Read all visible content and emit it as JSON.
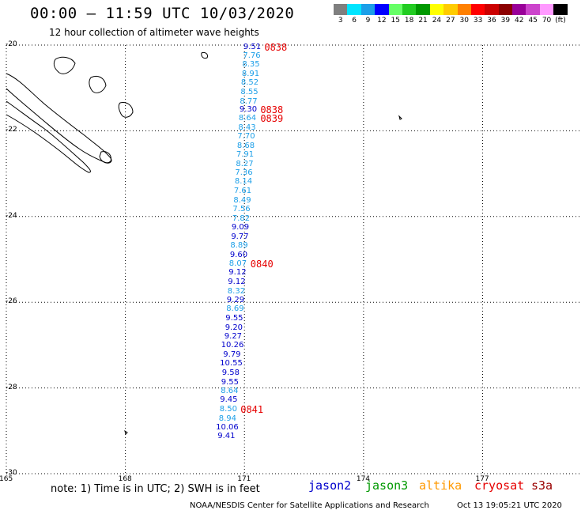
{
  "title": "00:00 – 11:59 UTC 10/03/2020",
  "subtitle": "12 hour collection of altimeter wave heights",
  "color_scale": {
    "unit": "(ft)",
    "bins": [
      {
        "label": "3",
        "color": "#7f7f7f"
      },
      {
        "label": "6",
        "color": "#00e5ff"
      },
      {
        "label": "9",
        "color": "#1c9fe8"
      },
      {
        "label": "12",
        "color": "#0000ff"
      },
      {
        "label": "15",
        "color": "#66ff66"
      },
      {
        "label": "18",
        "color": "#22cc22"
      },
      {
        "label": "21",
        "color": "#009900"
      },
      {
        "label": "24",
        "color": "#ffff00"
      },
      {
        "label": "27",
        "color": "#ffcc00"
      },
      {
        "label": "30",
        "color": "#ff8000"
      },
      {
        "label": "33",
        "color": "#ff0000"
      },
      {
        "label": "36",
        "color": "#cc0000"
      },
      {
        "label": "39",
        "color": "#8b0000"
      },
      {
        "label": "42",
        "color": "#990099"
      },
      {
        "label": "45",
        "color": "#cc44cc"
      },
      {
        "label": "70",
        "color": "#ff99ff"
      },
      {
        "label": "(ft)",
        "color": "#000000"
      }
    ]
  },
  "map": {
    "lat_labels": [
      "-20",
      "-22",
      "-24",
      "-26",
      "-28",
      "-30"
    ],
    "lon_labels": [
      "165",
      "168",
      "171",
      "174",
      "177"
    ],
    "lat_range": [
      -30,
      -20
    ],
    "lon_range": [
      165,
      179.5
    ],
    "track_color_light": "#1c9fe8",
    "track_color_dark": "#0000cc"
  },
  "observations": [
    {
      "lat": -20.06,
      "lon": 171.22,
      "swh": "9.51",
      "level": "dark"
    },
    {
      "lat": -20.25,
      "lon": 171.21,
      "swh": "7.76",
      "level": "light"
    },
    {
      "lat": -20.47,
      "lon": 171.19,
      "swh": "8.35",
      "level": "light"
    },
    {
      "lat": -20.68,
      "lon": 171.18,
      "swh": "8.91",
      "level": "light"
    },
    {
      "lat": -20.89,
      "lon": 171.16,
      "swh": "8.52",
      "level": "light"
    },
    {
      "lat": -21.1,
      "lon": 171.15,
      "swh": "8.55",
      "level": "light"
    },
    {
      "lat": -21.32,
      "lon": 171.13,
      "swh": "8.77",
      "level": "light"
    },
    {
      "lat": -21.51,
      "lon": 171.12,
      "swh": "9.30",
      "level": "dark"
    },
    {
      "lat": -21.72,
      "lon": 171.1,
      "swh": "8.64",
      "level": "light"
    },
    {
      "lat": -21.93,
      "lon": 171.09,
      "swh": "8.43",
      "level": "light"
    },
    {
      "lat": -22.14,
      "lon": 171.07,
      "swh": "7.70",
      "level": "light"
    },
    {
      "lat": -22.36,
      "lon": 171.06,
      "swh": "8.68",
      "level": "light"
    },
    {
      "lat": -22.57,
      "lon": 171.04,
      "swh": "7.91",
      "level": "light"
    },
    {
      "lat": -22.78,
      "lon": 171.03,
      "swh": "8.27",
      "level": "light"
    },
    {
      "lat": -22.99,
      "lon": 171.01,
      "swh": "7.36",
      "level": "light"
    },
    {
      "lat": -23.2,
      "lon": 171.0,
      "swh": "8.14",
      "level": "light"
    },
    {
      "lat": -23.42,
      "lon": 170.98,
      "swh": "7.61",
      "level": "light"
    },
    {
      "lat": -23.63,
      "lon": 170.97,
      "swh": "8.49",
      "level": "light"
    },
    {
      "lat": -23.84,
      "lon": 170.95,
      "swh": "7.56",
      "level": "light"
    },
    {
      "lat": -24.05,
      "lon": 170.94,
      "swh": "7.82",
      "level": "light"
    },
    {
      "lat": -24.26,
      "lon": 170.92,
      "swh": "9.09",
      "level": "dark"
    },
    {
      "lat": -24.48,
      "lon": 170.91,
      "swh": "9.77",
      "level": "dark"
    },
    {
      "lat": -24.69,
      "lon": 170.89,
      "swh": "8.89",
      "level": "light"
    },
    {
      "lat": -24.9,
      "lon": 170.88,
      "swh": "9.60",
      "level": "dark"
    },
    {
      "lat": -25.11,
      "lon": 170.86,
      "swh": "8.07",
      "level": "light"
    },
    {
      "lat": -25.32,
      "lon": 170.85,
      "swh": "9.12",
      "level": "dark"
    },
    {
      "lat": -25.54,
      "lon": 170.83,
      "swh": "9.12",
      "level": "dark"
    },
    {
      "lat": -25.75,
      "lon": 170.82,
      "swh": "8.32",
      "level": "light"
    },
    {
      "lat": -25.96,
      "lon": 170.8,
      "swh": "9.29",
      "level": "dark"
    },
    {
      "lat": -26.17,
      "lon": 170.79,
      "swh": "8.69",
      "level": "light"
    },
    {
      "lat": -26.38,
      "lon": 170.77,
      "swh": "9.55",
      "level": "dark"
    },
    {
      "lat": -26.6,
      "lon": 170.76,
      "swh": "9.20",
      "level": "dark"
    },
    {
      "lat": -26.81,
      "lon": 170.74,
      "swh": "9.27",
      "level": "dark"
    },
    {
      "lat": -27.02,
      "lon": 170.72,
      "swh": "10.26",
      "level": "dark"
    },
    {
      "lat": -27.23,
      "lon": 170.71,
      "swh": "9.79",
      "level": "dark"
    },
    {
      "lat": -27.44,
      "lon": 170.69,
      "swh": "10.55",
      "level": "dark"
    },
    {
      "lat": -27.66,
      "lon": 170.68,
      "swh": "9.58",
      "level": "dark"
    },
    {
      "lat": -27.87,
      "lon": 170.66,
      "swh": "9.55",
      "level": "dark"
    },
    {
      "lat": -28.08,
      "lon": 170.65,
      "swh": "8.64",
      "level": "light"
    },
    {
      "lat": -28.29,
      "lon": 170.63,
      "swh": "9.45",
      "level": "dark"
    },
    {
      "lat": -28.5,
      "lon": 170.62,
      "swh": "8.50",
      "level": "light"
    },
    {
      "lat": -28.72,
      "lon": 170.6,
      "swh": "8.94",
      "level": "light"
    },
    {
      "lat": -28.93,
      "lon": 170.59,
      "swh": "10.06",
      "level": "dark"
    },
    {
      "lat": -29.14,
      "lon": 170.57,
      "swh": "9.41",
      "level": "dark"
    }
  ],
  "time_labels": [
    {
      "text": "0838",
      "lat": -20.06,
      "lon": 171.5
    },
    {
      "text": "0838",
      "lat": -21.51,
      "lon": 171.4
    },
    {
      "text": "0839",
      "lat": -21.72,
      "lon": 171.4
    },
    {
      "text": "0840",
      "lat": -25.11,
      "lon": 171.15
    },
    {
      "text": "0841",
      "lat": -28.5,
      "lon": 170.9
    }
  ],
  "footer": {
    "note": "note: 1) Time is in UTC; 2) SWH is in feet",
    "legend": [
      {
        "label": "jason2",
        "color": "#0000cc"
      },
      {
        "label": "jason3",
        "color": "#009900"
      },
      {
        "label": "altika",
        "color": "#ff9900"
      },
      {
        "label": "cryosat",
        "color": "#e60000"
      },
      {
        "label": "s3a",
        "color": "#990000"
      }
    ],
    "credit_left": "NOAA/NESDIS Center for Satellite Applications and Research",
    "credit_right": "Oct 13 19:05:21 UTC 2020"
  }
}
